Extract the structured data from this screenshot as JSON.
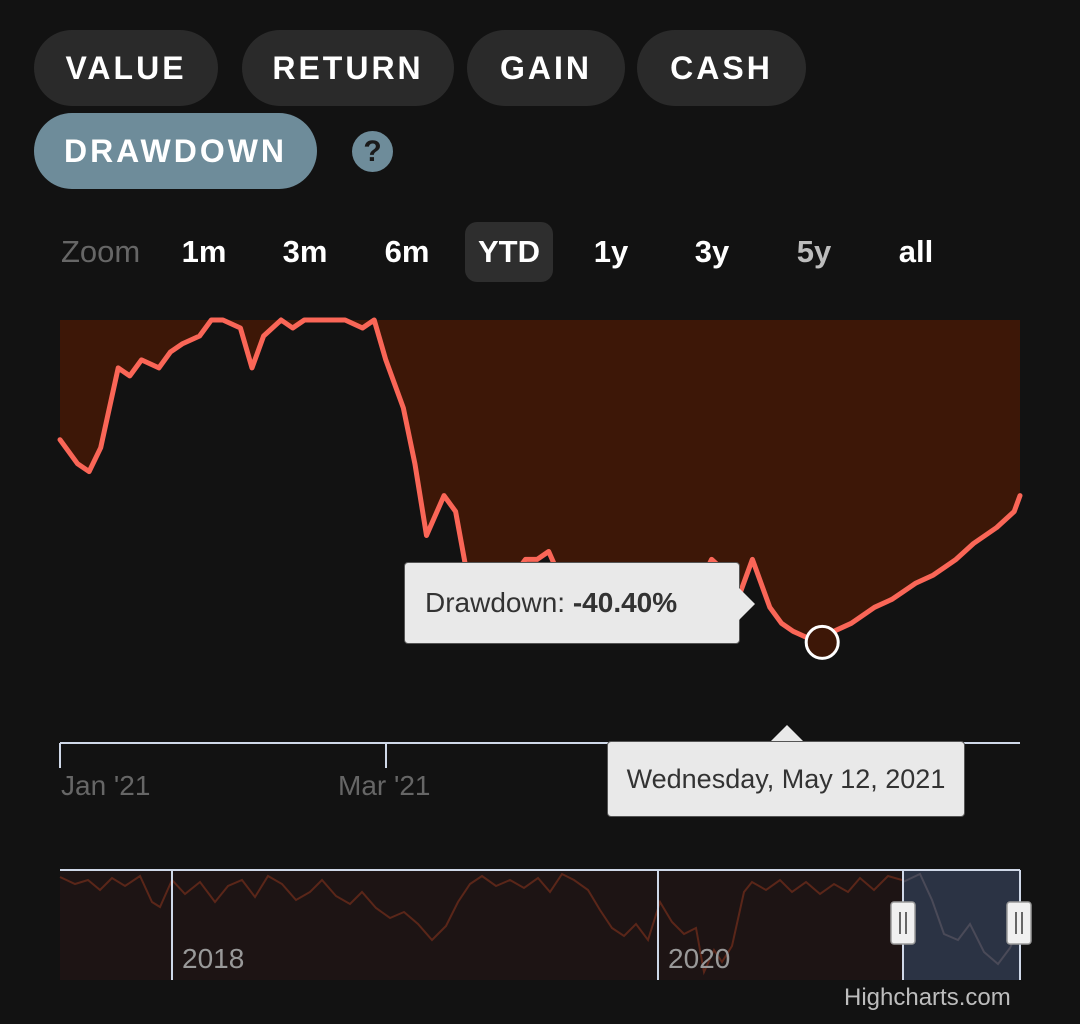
{
  "tabs": [
    {
      "label": "VALUE",
      "active": false
    },
    {
      "label": "RETURN",
      "active": false
    },
    {
      "label": "GAIN",
      "active": false
    },
    {
      "label": "CASH",
      "active": false
    },
    {
      "label": "DRAWDOWN",
      "active": true
    }
  ],
  "help_label": "?",
  "zoom": {
    "label": "Zoom",
    "options": [
      "1m",
      "3m",
      "6m",
      "YTD",
      "1y",
      "3y",
      "5y",
      "all"
    ],
    "selected": "YTD",
    "disabled": [
      "5y"
    ]
  },
  "colors": {
    "line": "#fa6657",
    "fill": "#3d1707",
    "navigator_selection": "#2b3344",
    "active_tab": "#6e8c9a"
  },
  "tooltip": {
    "series_label": "Drawdown: ",
    "value": "-40.40%",
    "date": "Wednesday, May 12, 2021"
  },
  "credit": "Highcharts.com",
  "chart_data": {
    "type": "area",
    "series": [
      {
        "name": "Drawdown",
        "unit": "%"
      }
    ],
    "y_max": 0,
    "y_min_visible": -53,
    "points": [
      [
        "2021-01-01",
        -15
      ],
      [
        "2021-01-04",
        -18
      ],
      [
        "2021-01-06",
        -19
      ],
      [
        "2021-01-08",
        -16
      ],
      [
        "2021-01-11",
        -6
      ],
      [
        "2021-01-13",
        -7
      ],
      [
        "2021-01-15",
        -5
      ],
      [
        "2021-01-18",
        -6
      ],
      [
        "2021-01-20",
        -4
      ],
      [
        "2021-01-22",
        -3
      ],
      [
        "2021-01-25",
        -2
      ],
      [
        "2021-01-27",
        0
      ],
      [
        "2021-01-29",
        0
      ],
      [
        "2021-02-01",
        -1
      ],
      [
        "2021-02-03",
        -6
      ],
      [
        "2021-02-05",
        -2
      ],
      [
        "2021-02-08",
        0
      ],
      [
        "2021-02-10",
        -1
      ],
      [
        "2021-02-12",
        0
      ],
      [
        "2021-02-15",
        0
      ],
      [
        "2021-02-17",
        0
      ],
      [
        "2021-02-19",
        0
      ],
      [
        "2021-02-22",
        -1
      ],
      [
        "2021-02-24",
        0
      ],
      [
        "2021-02-26",
        -5
      ],
      [
        "2021-03-01",
        -11
      ],
      [
        "2021-03-03",
        -18
      ],
      [
        "2021-03-05",
        -27
      ],
      [
        "2021-03-08",
        -22
      ],
      [
        "2021-03-10",
        -24
      ],
      [
        "2021-03-12",
        -32
      ],
      [
        "2021-03-15",
        -37
      ],
      [
        "2021-03-17",
        -39
      ],
      [
        "2021-03-19",
        -33
      ],
      [
        "2021-03-22",
        -30
      ],
      [
        "2021-03-24",
        -30
      ],
      [
        "2021-03-26",
        -29
      ],
      [
        "2021-03-29",
        -34
      ],
      [
        "2021-03-31",
        -32
      ],
      [
        "2021-04-02",
        -35
      ],
      [
        "2021-04-05",
        -37
      ],
      [
        "2021-04-07",
        -38
      ],
      [
        "2021-04-09",
        -37
      ],
      [
        "2021-04-12",
        -33
      ],
      [
        "2021-04-14",
        -34
      ],
      [
        "2021-04-16",
        -32
      ],
      [
        "2021-04-19",
        -31
      ],
      [
        "2021-04-21",
        -33
      ],
      [
        "2021-04-23",
        -30
      ],
      [
        "2021-04-26",
        -32
      ],
      [
        "2021-04-28",
        -34
      ],
      [
        "2021-04-30",
        -30
      ],
      [
        "2021-05-03",
        -36
      ],
      [
        "2021-05-05",
        -38
      ],
      [
        "2021-05-07",
        -39
      ],
      [
        "2021-05-10",
        -40
      ],
      [
        "2021-05-12",
        -40.4
      ],
      [
        "2021-05-14",
        -39
      ],
      [
        "2021-05-17",
        -38
      ],
      [
        "2021-05-19",
        -37
      ],
      [
        "2021-05-21",
        -36
      ],
      [
        "2021-05-24",
        -35
      ],
      [
        "2021-05-26",
        -34
      ],
      [
        "2021-05-28",
        -33
      ],
      [
        "2021-05-31",
        -32
      ],
      [
        "2021-06-02",
        -31
      ],
      [
        "2021-06-04",
        -30
      ],
      [
        "2021-06-07",
        -28
      ],
      [
        "2021-06-09",
        -27
      ],
      [
        "2021-06-11",
        -26
      ],
      [
        "2021-06-14",
        -24
      ],
      [
        "2021-06-15",
        -22
      ]
    ],
    "x_labels": [
      "Jan '21",
      "Mar '21"
    ],
    "navigator": {
      "x_labels": [
        "2018",
        "2020"
      ]
    },
    "grid": false
  }
}
